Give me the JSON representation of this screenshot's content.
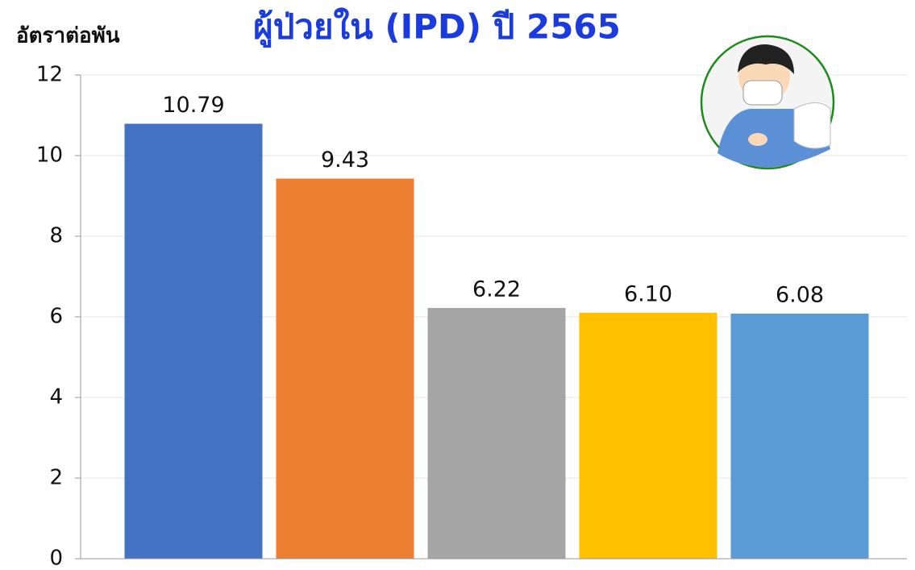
{
  "chart_data": {
    "type": "bar",
    "title": "ผู้ป่วยใน (IPD) ปี 2565",
    "y_label": "อัตราต่อพัน",
    "categories": [
      null,
      null,
      null,
      null,
      null
    ],
    "values": [
      10.79,
      9.43,
      6.22,
      6.1,
      6.08
    ],
    "value_labels": [
      "10.79",
      "9.43",
      "6.22",
      "6.10",
      "6.08"
    ],
    "colors": [
      "#4472c4",
      "#ed7d31",
      "#a5a5a5",
      "#ffc000",
      "#5b9bd5"
    ],
    "ylim": [
      0,
      12
    ],
    "yticks": [
      0,
      2,
      4,
      6,
      8,
      10,
      12
    ],
    "grid": true
  }
}
